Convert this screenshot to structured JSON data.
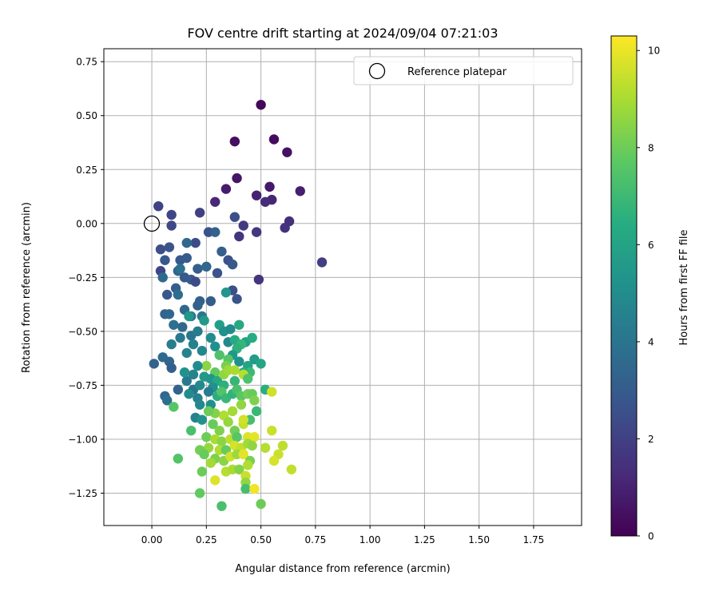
{
  "chart_data": {
    "type": "scatter",
    "title": "FOV centre drift starting at 2024/09/04 07:21:03",
    "xlabel": "Angular distance from reference (arcmin)",
    "ylabel": "Rotation from reference (arcmin)",
    "xlim": [
      -0.22,
      1.97
    ],
    "ylim": [
      -1.4,
      0.81
    ],
    "xticks": [
      0.0,
      0.25,
      0.5,
      0.75,
      1.0,
      1.25,
      1.5,
      1.75
    ],
    "xtick_labels": [
      "0.00",
      "0.25",
      "0.50",
      "0.75",
      "1.00",
      "1.25",
      "1.50",
      "1.75"
    ],
    "yticks": [
      0.75,
      0.5,
      0.25,
      0.0,
      -0.25,
      -0.5,
      -0.75,
      -1.0,
      -1.25
    ],
    "ytick_labels": [
      "0.75",
      "0.50",
      "0.25",
      "0.00",
      "−0.25",
      "−0.50",
      "−0.75",
      "−1.00",
      "−1.25"
    ],
    "grid": true,
    "legend": {
      "placement": "top-right",
      "entries": [
        {
          "label": "Reference platepar",
          "marker": "open-circle",
          "x": 0.0,
          "y": 0.0
        }
      ]
    },
    "colorbar": {
      "label": "Hours from first FF file",
      "colormap": "viridis",
      "range": [
        0,
        10.3
      ],
      "ticks": [
        0,
        2,
        4,
        6,
        8,
        10
      ],
      "tick_labels": [
        "0",
        "2",
        "4",
        "6",
        "8",
        "10"
      ]
    },
    "points": [
      [
        0.5,
        0.55,
        0.2
      ],
      [
        0.56,
        0.39,
        0.3
      ],
      [
        0.38,
        0.38,
        0.4
      ],
      [
        0.62,
        0.33,
        0.5
      ],
      [
        0.39,
        0.21,
        0.6
      ],
      [
        0.54,
        0.17,
        0.7
      ],
      [
        0.34,
        0.16,
        0.8
      ],
      [
        0.68,
        0.15,
        0.9
      ],
      [
        0.48,
        0.13,
        1.0
      ],
      [
        0.55,
        0.11,
        1.1
      ],
      [
        0.29,
        0.1,
        1.2
      ],
      [
        0.52,
        0.1,
        1.3
      ],
      [
        0.63,
        0.01,
        1.4
      ],
      [
        0.61,
        -0.02,
        1.5
      ],
      [
        0.4,
        -0.06,
        1.6
      ],
      [
        0.48,
        -0.04,
        1.7
      ],
      [
        0.42,
        -0.01,
        1.8
      ],
      [
        0.78,
        -0.18,
        1.9
      ],
      [
        0.49,
        -0.26,
        1.6
      ],
      [
        0.22,
        0.05,
        2.0
      ],
      [
        0.03,
        0.08,
        2.1
      ],
      [
        0.09,
        0.04,
        2.2
      ],
      [
        0.09,
        -0.01,
        2.3
      ],
      [
        0.38,
        0.03,
        2.5
      ],
      [
        0.26,
        -0.04,
        2.6
      ],
      [
        0.29,
        -0.04,
        3.3
      ],
      [
        0.2,
        -0.09,
        2.4
      ],
      [
        0.08,
        -0.11,
        2.7
      ],
      [
        0.04,
        -0.12,
        2.5
      ],
      [
        0.06,
        -0.17,
        2.8
      ],
      [
        0.13,
        -0.17,
        2.9
      ],
      [
        0.16,
        -0.16,
        3.0
      ],
      [
        0.21,
        -0.21,
        3.1
      ],
      [
        0.32,
        -0.13,
        3.2
      ],
      [
        0.35,
        -0.17,
        2.6
      ],
      [
        0.37,
        -0.19,
        2.9
      ],
      [
        0.25,
        -0.2,
        3.4
      ],
      [
        0.3,
        -0.23,
        2.7
      ],
      [
        0.16,
        -0.09,
        3.5
      ],
      [
        0.12,
        -0.22,
        3.3
      ],
      [
        0.04,
        -0.22,
        2.2
      ],
      [
        0.15,
        -0.25,
        2.9
      ],
      [
        0.18,
        -0.26,
        3.0
      ],
      [
        0.11,
        -0.3,
        3.1
      ],
      [
        0.05,
        -0.25,
        3.6
      ],
      [
        0.07,
        -0.33,
        2.8
      ],
      [
        0.12,
        -0.33,
        3.7
      ],
      [
        0.2,
        -0.27,
        2.4
      ],
      [
        0.22,
        -0.36,
        3.2
      ],
      [
        0.27,
        -0.36,
        3.0
      ],
      [
        0.37,
        -0.31,
        2.5
      ],
      [
        0.39,
        -0.35,
        2.7
      ],
      [
        0.34,
        -0.32,
        5.4
      ],
      [
        0.13,
        -0.21,
        3.9
      ],
      [
        0.06,
        -0.42,
        3.3
      ],
      [
        0.08,
        -0.42,
        3.4
      ],
      [
        0.15,
        -0.4,
        3.5
      ],
      [
        0.21,
        -0.38,
        3.2
      ],
      [
        0.1,
        -0.47,
        3.8
      ],
      [
        0.14,
        -0.48,
        3.6
      ],
      [
        0.18,
        -0.43,
        4.0
      ],
      [
        0.23,
        -0.43,
        4.1
      ],
      [
        0.13,
        -0.53,
        4.2
      ],
      [
        0.18,
        -0.52,
        4.0
      ],
      [
        0.21,
        -0.5,
        4.3
      ],
      [
        0.17,
        -0.43,
        5.5
      ],
      [
        0.24,
        -0.45,
        5.6
      ],
      [
        0.19,
        -0.56,
        4.5
      ],
      [
        0.09,
        -0.56,
        4.4
      ],
      [
        0.05,
        -0.62,
        3.6
      ],
      [
        0.01,
        -0.65,
        3.3
      ],
      [
        0.08,
        -0.64,
        3.4
      ],
      [
        0.09,
        -0.67,
        3.1
      ],
      [
        0.16,
        -0.6,
        4.6
      ],
      [
        0.23,
        -0.59,
        4.7
      ],
      [
        0.27,
        -0.53,
        5.0
      ],
      [
        0.31,
        -0.47,
        5.8
      ],
      [
        0.33,
        -0.5,
        5.2
      ],
      [
        0.36,
        -0.49,
        5.0
      ],
      [
        0.4,
        -0.47,
        6.2
      ],
      [
        0.35,
        -0.55,
        4.8
      ],
      [
        0.29,
        -0.57,
        5.1
      ],
      [
        0.38,
        -0.54,
        6.3
      ],
      [
        0.43,
        -0.55,
        5.9
      ],
      [
        0.46,
        -0.53,
        6.4
      ],
      [
        0.41,
        -0.56,
        6.8
      ],
      [
        0.39,
        -0.58,
        6.6
      ],
      [
        0.37,
        -0.61,
        5.5
      ],
      [
        0.4,
        -0.64,
        5.2
      ],
      [
        0.44,
        -0.66,
        6.0
      ],
      [
        0.47,
        -0.63,
        5.7
      ],
      [
        0.5,
        -0.65,
        6.1
      ],
      [
        0.45,
        -0.69,
        7.0
      ],
      [
        0.42,
        -0.69,
        6.5
      ],
      [
        0.35,
        -0.63,
        7.6
      ],
      [
        0.31,
        -0.61,
        7.4
      ],
      [
        0.34,
        -0.66,
        8.2
      ],
      [
        0.29,
        -0.69,
        7.8
      ],
      [
        0.25,
        -0.66,
        8.5
      ],
      [
        0.21,
        -0.66,
        5.0
      ],
      [
        0.19,
        -0.7,
        4.6
      ],
      [
        0.16,
        -0.73,
        4.2
      ],
      [
        0.15,
        -0.69,
        5.2
      ],
      [
        0.12,
        -0.77,
        3.3
      ],
      [
        0.19,
        -0.77,
        4.0
      ],
      [
        0.22,
        -0.75,
        4.8
      ],
      [
        0.24,
        -0.71,
        5.6
      ],
      [
        0.27,
        -0.72,
        5.4
      ],
      [
        0.3,
        -0.73,
        6.2
      ],
      [
        0.33,
        -0.7,
        8.6
      ],
      [
        0.35,
        -0.68,
        8.8
      ],
      [
        0.38,
        -0.68,
        9.0
      ],
      [
        0.42,
        -0.7,
        9.2
      ],
      [
        0.44,
        -0.72,
        7.4
      ],
      [
        0.38,
        -0.73,
        6.8
      ],
      [
        0.33,
        -0.75,
        6.6
      ],
      [
        0.28,
        -0.76,
        5.2
      ],
      [
        0.26,
        -0.78,
        4.3
      ],
      [
        0.21,
        -0.81,
        4.5
      ],
      [
        0.17,
        -0.79,
        5.0
      ],
      [
        0.06,
        -0.8,
        3.5
      ],
      [
        0.07,
        -0.82,
        3.8
      ],
      [
        0.1,
        -0.85,
        7.6
      ],
      [
        0.2,
        -0.9,
        4.6
      ],
      [
        0.22,
        -0.84,
        4.8
      ],
      [
        0.27,
        -0.84,
        5.1
      ],
      [
        0.3,
        -0.8,
        6.5
      ],
      [
        0.32,
        -0.78,
        7.5
      ],
      [
        0.34,
        -0.81,
        6.9
      ],
      [
        0.37,
        -0.79,
        6.7
      ],
      [
        0.39,
        -0.77,
        7.3
      ],
      [
        0.41,
        -0.8,
        7.7
      ],
      [
        0.44,
        -0.79,
        8.1
      ],
      [
        0.46,
        -0.79,
        7.9
      ],
      [
        0.52,
        -0.77,
        6.5
      ],
      [
        0.55,
        -0.78,
        9.6
      ],
      [
        0.47,
        -0.82,
        8.3
      ],
      [
        0.41,
        -0.84,
        8.6
      ],
      [
        0.37,
        -0.87,
        8.9
      ],
      [
        0.33,
        -0.89,
        9.1
      ],
      [
        0.29,
        -0.88,
        8.4
      ],
      [
        0.26,
        -0.87,
        8.0
      ],
      [
        0.23,
        -0.91,
        5.3
      ],
      [
        0.28,
        -0.93,
        7.9
      ],
      [
        0.31,
        -0.96,
        8.3
      ],
      [
        0.35,
        -0.92,
        8.7
      ],
      [
        0.38,
        -0.96,
        8.1
      ],
      [
        0.42,
        -0.93,
        9.4
      ],
      [
        0.45,
        -0.91,
        7.2
      ],
      [
        0.48,
        -0.87,
        6.9
      ],
      [
        0.42,
        -0.91,
        9.6
      ],
      [
        0.18,
        -0.96,
        7.3
      ],
      [
        0.25,
        -0.99,
        8.0
      ],
      [
        0.29,
        -1.0,
        9.0
      ],
      [
        0.32,
        -1.01,
        8.5
      ],
      [
        0.36,
        -1.0,
        9.3
      ],
      [
        0.39,
        -0.99,
        7.6
      ],
      [
        0.44,
        -0.99,
        9.8
      ],
      [
        0.47,
        -0.99,
        9.9
      ],
      [
        0.55,
        -0.96,
        9.5
      ],
      [
        0.26,
        -1.04,
        8.7
      ],
      [
        0.31,
        -1.05,
        9.1
      ],
      [
        0.34,
        -1.05,
        7.9
      ],
      [
        0.38,
        -1.03,
        9.7
      ],
      [
        0.41,
        -1.04,
        9.4
      ],
      [
        0.44,
        -1.02,
        8.9
      ],
      [
        0.46,
        -1.03,
        8.6
      ],
      [
        0.52,
        -1.04,
        9.2
      ],
      [
        0.6,
        -1.03,
        9.3
      ],
      [
        0.22,
        -1.05,
        8.1
      ],
      [
        0.24,
        -1.07,
        7.9
      ],
      [
        0.29,
        -1.09,
        8.3
      ],
      [
        0.33,
        -1.1,
        8.5
      ],
      [
        0.36,
        -1.08,
        9.6
      ],
      [
        0.39,
        -1.07,
        8.8
      ],
      [
        0.42,
        -1.07,
        9.9
      ],
      [
        0.45,
        -1.1,
        8.2
      ],
      [
        0.58,
        -1.07,
        9.5
      ],
      [
        0.56,
        -1.1,
        9.7
      ],
      [
        0.12,
        -1.09,
        7.5
      ],
      [
        0.27,
        -1.11,
        8.9
      ],
      [
        0.34,
        -1.15,
        9.2
      ],
      [
        0.37,
        -1.14,
        9.0
      ],
      [
        0.4,
        -1.14,
        8.4
      ],
      [
        0.44,
        -1.12,
        9.1
      ],
      [
        0.64,
        -1.14,
        9.4
      ],
      [
        0.23,
        -1.15,
        8.0
      ],
      [
        0.29,
        -1.19,
        9.8
      ],
      [
        0.43,
        -1.17,
        9.5
      ],
      [
        0.43,
        -1.2,
        8.6
      ],
      [
        0.43,
        -1.23,
        7.2
      ],
      [
        0.47,
        -1.23,
        10.1
      ],
      [
        0.22,
        -1.25,
        7.8
      ],
      [
        0.32,
        -1.31,
        7.3
      ],
      [
        0.5,
        -1.3,
        8.0
      ]
    ]
  }
}
